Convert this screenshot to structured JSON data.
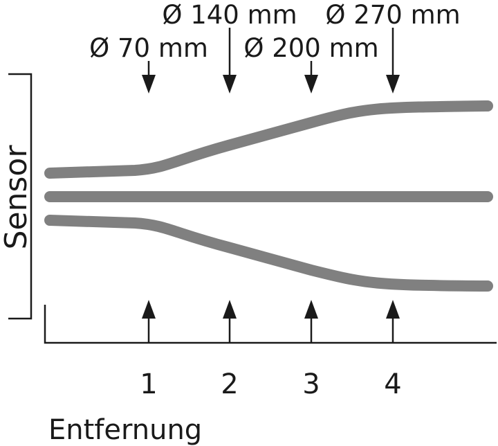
{
  "diameters": [
    "Ø 70 mm",
    "Ø 140 mm",
    "Ø 200 mm",
    "Ø 270 mm"
  ],
  "sensor_label": "Sensor",
  "distance_ticks": [
    "1",
    "2",
    "3",
    "4"
  ],
  "axis_label": "Entfernung"
}
